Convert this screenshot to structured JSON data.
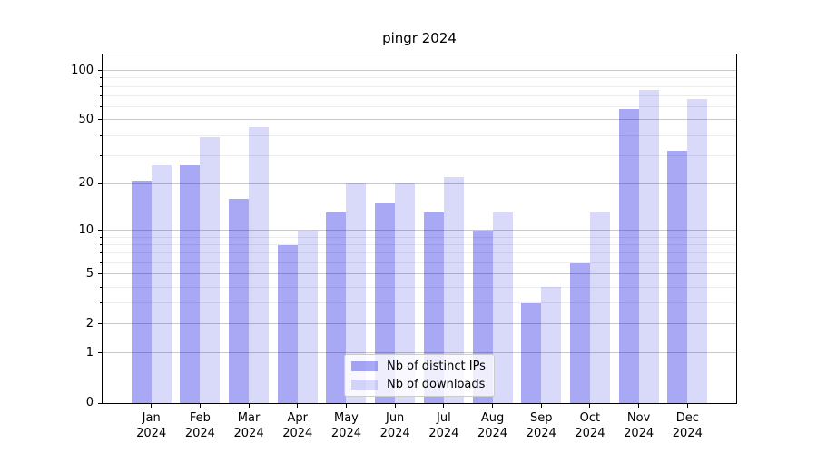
{
  "title": "pingr 2024",
  "chart_data": {
    "type": "bar",
    "title": "pingr 2024",
    "y_scale": "log1p",
    "categories": [
      "Jan",
      "Feb",
      "Mar",
      "Apr",
      "May",
      "Jun",
      "Jul",
      "Aug",
      "Sep",
      "Oct",
      "Nov",
      "Dec"
    ],
    "x_year": "2024",
    "series": [
      {
        "name": "Nb of distinct IPs",
        "color": "rgba(0,0,222,0.34)",
        "values": [
          21,
          26,
          16,
          8,
          13,
          15,
          13,
          10,
          3,
          6,
          58,
          32
        ]
      },
      {
        "name": "Nb of downloads",
        "color": "rgba(0,0,222,0.15)",
        "values": [
          26,
          39,
          45,
          10,
          20,
          20,
          22,
          13,
          4,
          13,
          76,
          67
        ]
      }
    ],
    "y_major_ticks": [
      0,
      1,
      2,
      5,
      10,
      20,
      50,
      100
    ],
    "y_minor_ticks": [
      3,
      4,
      6,
      7,
      8,
      9,
      30,
      40,
      60,
      70,
      80,
      90
    ],
    "ylim": [
      0,
      125
    ],
    "xlabel": "",
    "ylabel": "",
    "grid": true,
    "legend_position": "lower center"
  },
  "colors": {
    "grid_major": "#c9c9c9",
    "grid_minor": "#ececec",
    "axis": "#000000",
    "legend_bg": "rgba(255,255,255,0.8)",
    "legend_border": "#cccccc"
  }
}
